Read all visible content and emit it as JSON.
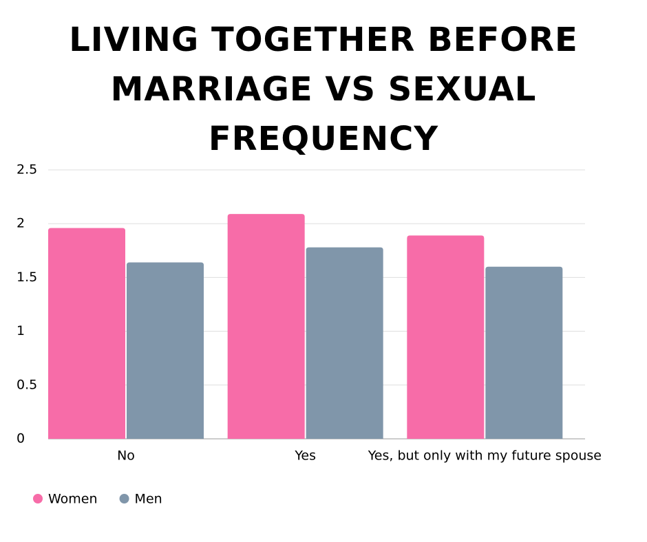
{
  "chart_data": {
    "type": "bar",
    "title": "LIVING TOGETHER BEFORE MARRIAGE VS SEXUAL FREQUENCY",
    "categories": [
      "No",
      "Yes",
      "Yes, but only with my future spouse"
    ],
    "series": [
      {
        "name": "Women",
        "color": "#f76ca8",
        "values": [
          1.96,
          2.09,
          1.89
        ]
      },
      {
        "name": "Men",
        "color": "#8096aa",
        "values": [
          1.64,
          1.78,
          1.6
        ]
      }
    ],
    "ylim": [
      0,
      2.5
    ],
    "yticks": [
      0,
      0.5,
      1,
      1.5,
      2,
      2.5
    ],
    "grid": true
  }
}
